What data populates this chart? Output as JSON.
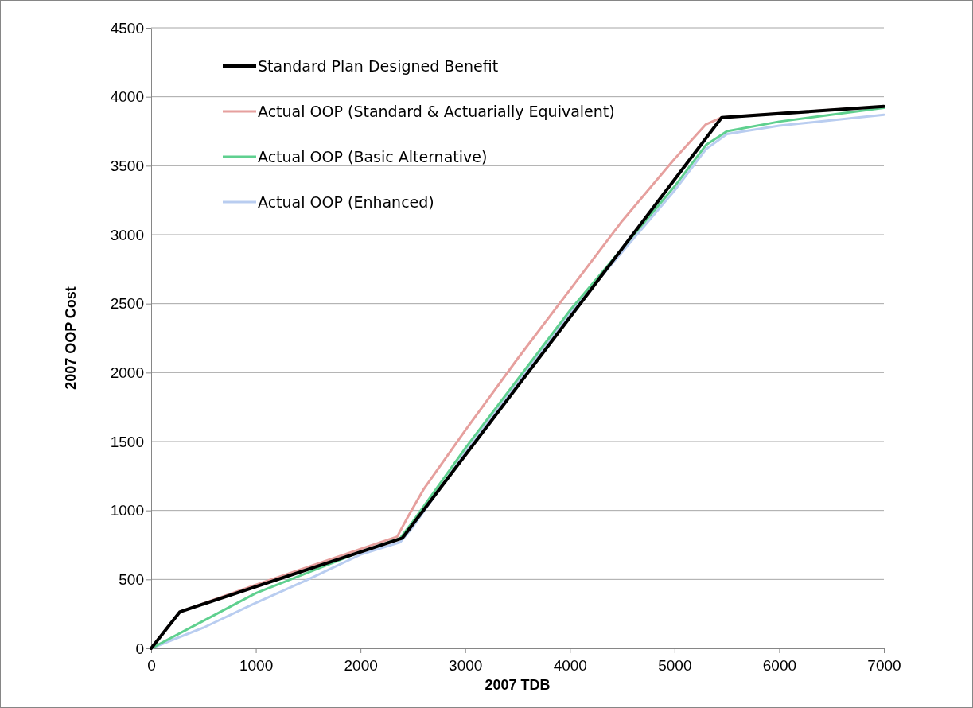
{
  "chart_data": {
    "type": "line",
    "xlabel": "2007 TDB",
    "ylabel": "2007 OOP Cost",
    "xlim": [
      0,
      7000
    ],
    "xticks": [
      0,
      1000,
      2000,
      3000,
      4000,
      5000,
      6000,
      7000
    ],
    "ylim": [
      0,
      4500
    ],
    "yticks": [
      0,
      500,
      1000,
      1500,
      2000,
      2500,
      3000,
      3500,
      4000,
      4500
    ],
    "grid": "y",
    "legend": "top left",
    "marker": "none",
    "line_style": "solid",
    "series": [
      {
        "name": "Standard Plan Designed Benefit",
        "color": "#000000",
        "x": [
          0,
          275,
          2400,
          5450,
          7000
        ],
        "values": [
          0,
          265,
          800,
          3850,
          3930
        ]
      },
      {
        "name": "Actual OOP (Standard & Actuarially Equivalent)",
        "color": "#e6a09e",
        "x": [
          0,
          275,
          1000,
          2000,
          2350,
          2450,
          2600,
          3000,
          3500,
          4000,
          4500,
          5000,
          5300,
          5450,
          6000,
          7000
        ],
        "values": [
          0,
          265,
          460,
          720,
          810,
          950,
          1150,
          1580,
          2100,
          2600,
          3100,
          3550,
          3800,
          3850,
          3880,
          3930
        ]
      },
      {
        "name": "Actual OOP (Basic Alternative)",
        "color": "#5fd08f",
        "x": [
          0,
          500,
          1000,
          2000,
          2380,
          2500,
          3000,
          4000,
          5000,
          5300,
          5500,
          6000,
          7000
        ],
        "values": [
          0,
          200,
          400,
          700,
          800,
          920,
          1450,
          2450,
          3350,
          3650,
          3750,
          3820,
          3920
        ]
      },
      {
        "name": "Actual OOP (Enhanced)",
        "color": "#b9cdf0",
        "x": [
          0,
          500,
          1000,
          1500,
          2000,
          2380,
          2500,
          3000,
          4000,
          5000,
          5300,
          5500,
          6000,
          7000
        ],
        "values": [
          0,
          150,
          330,
          500,
          680,
          770,
          880,
          1420,
          2430,
          3320,
          3620,
          3730,
          3790,
          3870
        ]
      }
    ]
  }
}
